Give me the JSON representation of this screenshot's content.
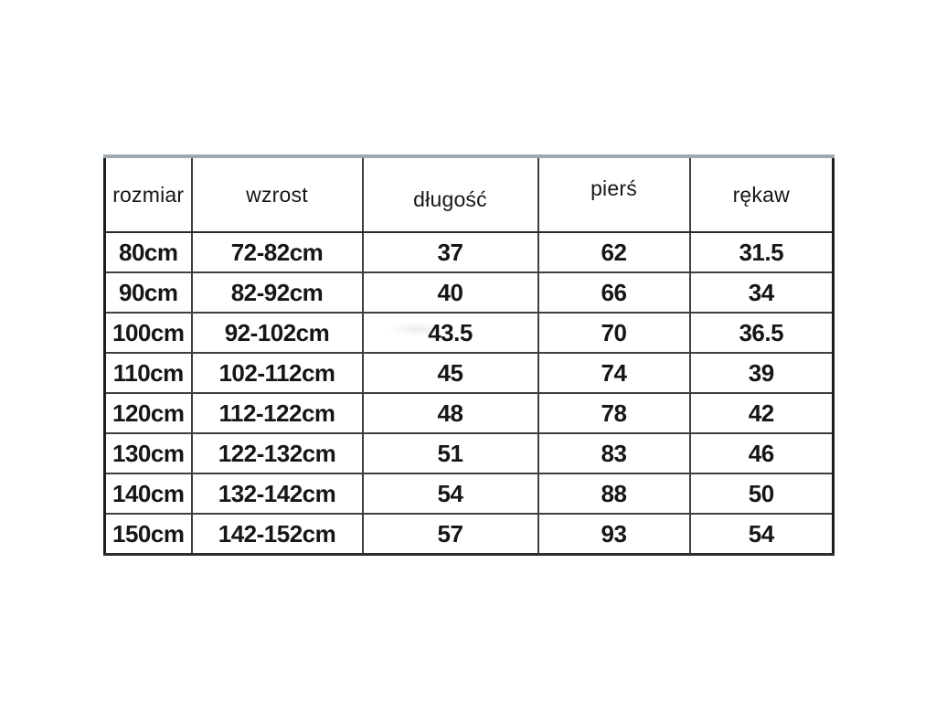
{
  "size_chart": {
    "headers": [
      "rozmiar",
      "wzrost",
      "długość",
      "pierś",
      "rękaw"
    ],
    "rows": [
      [
        "80cm",
        "72-82cm",
        "37",
        "62",
        "31.5"
      ],
      [
        "90cm",
        "82-92cm",
        "40",
        "66",
        "34"
      ],
      [
        "100cm",
        "92-102cm",
        "43.5",
        "70",
        "36.5"
      ],
      [
        "110cm",
        "102-112cm",
        "45",
        "74",
        "39"
      ],
      [
        "120cm",
        "112-122cm",
        "48",
        "78",
        "42"
      ],
      [
        "130cm",
        "122-132cm",
        "51",
        "83",
        "46"
      ],
      [
        "140cm",
        "132-142cm",
        "54",
        "88",
        "50"
      ],
      [
        "150cm",
        "142-152cm",
        "57",
        "93",
        "54"
      ]
    ],
    "colors": {
      "background": "#ffffff",
      "text": "#161616",
      "grid_line": "#3f3f3f",
      "outer_border": "#1c1c1c",
      "top_border": "#9ea8b0"
    }
  }
}
